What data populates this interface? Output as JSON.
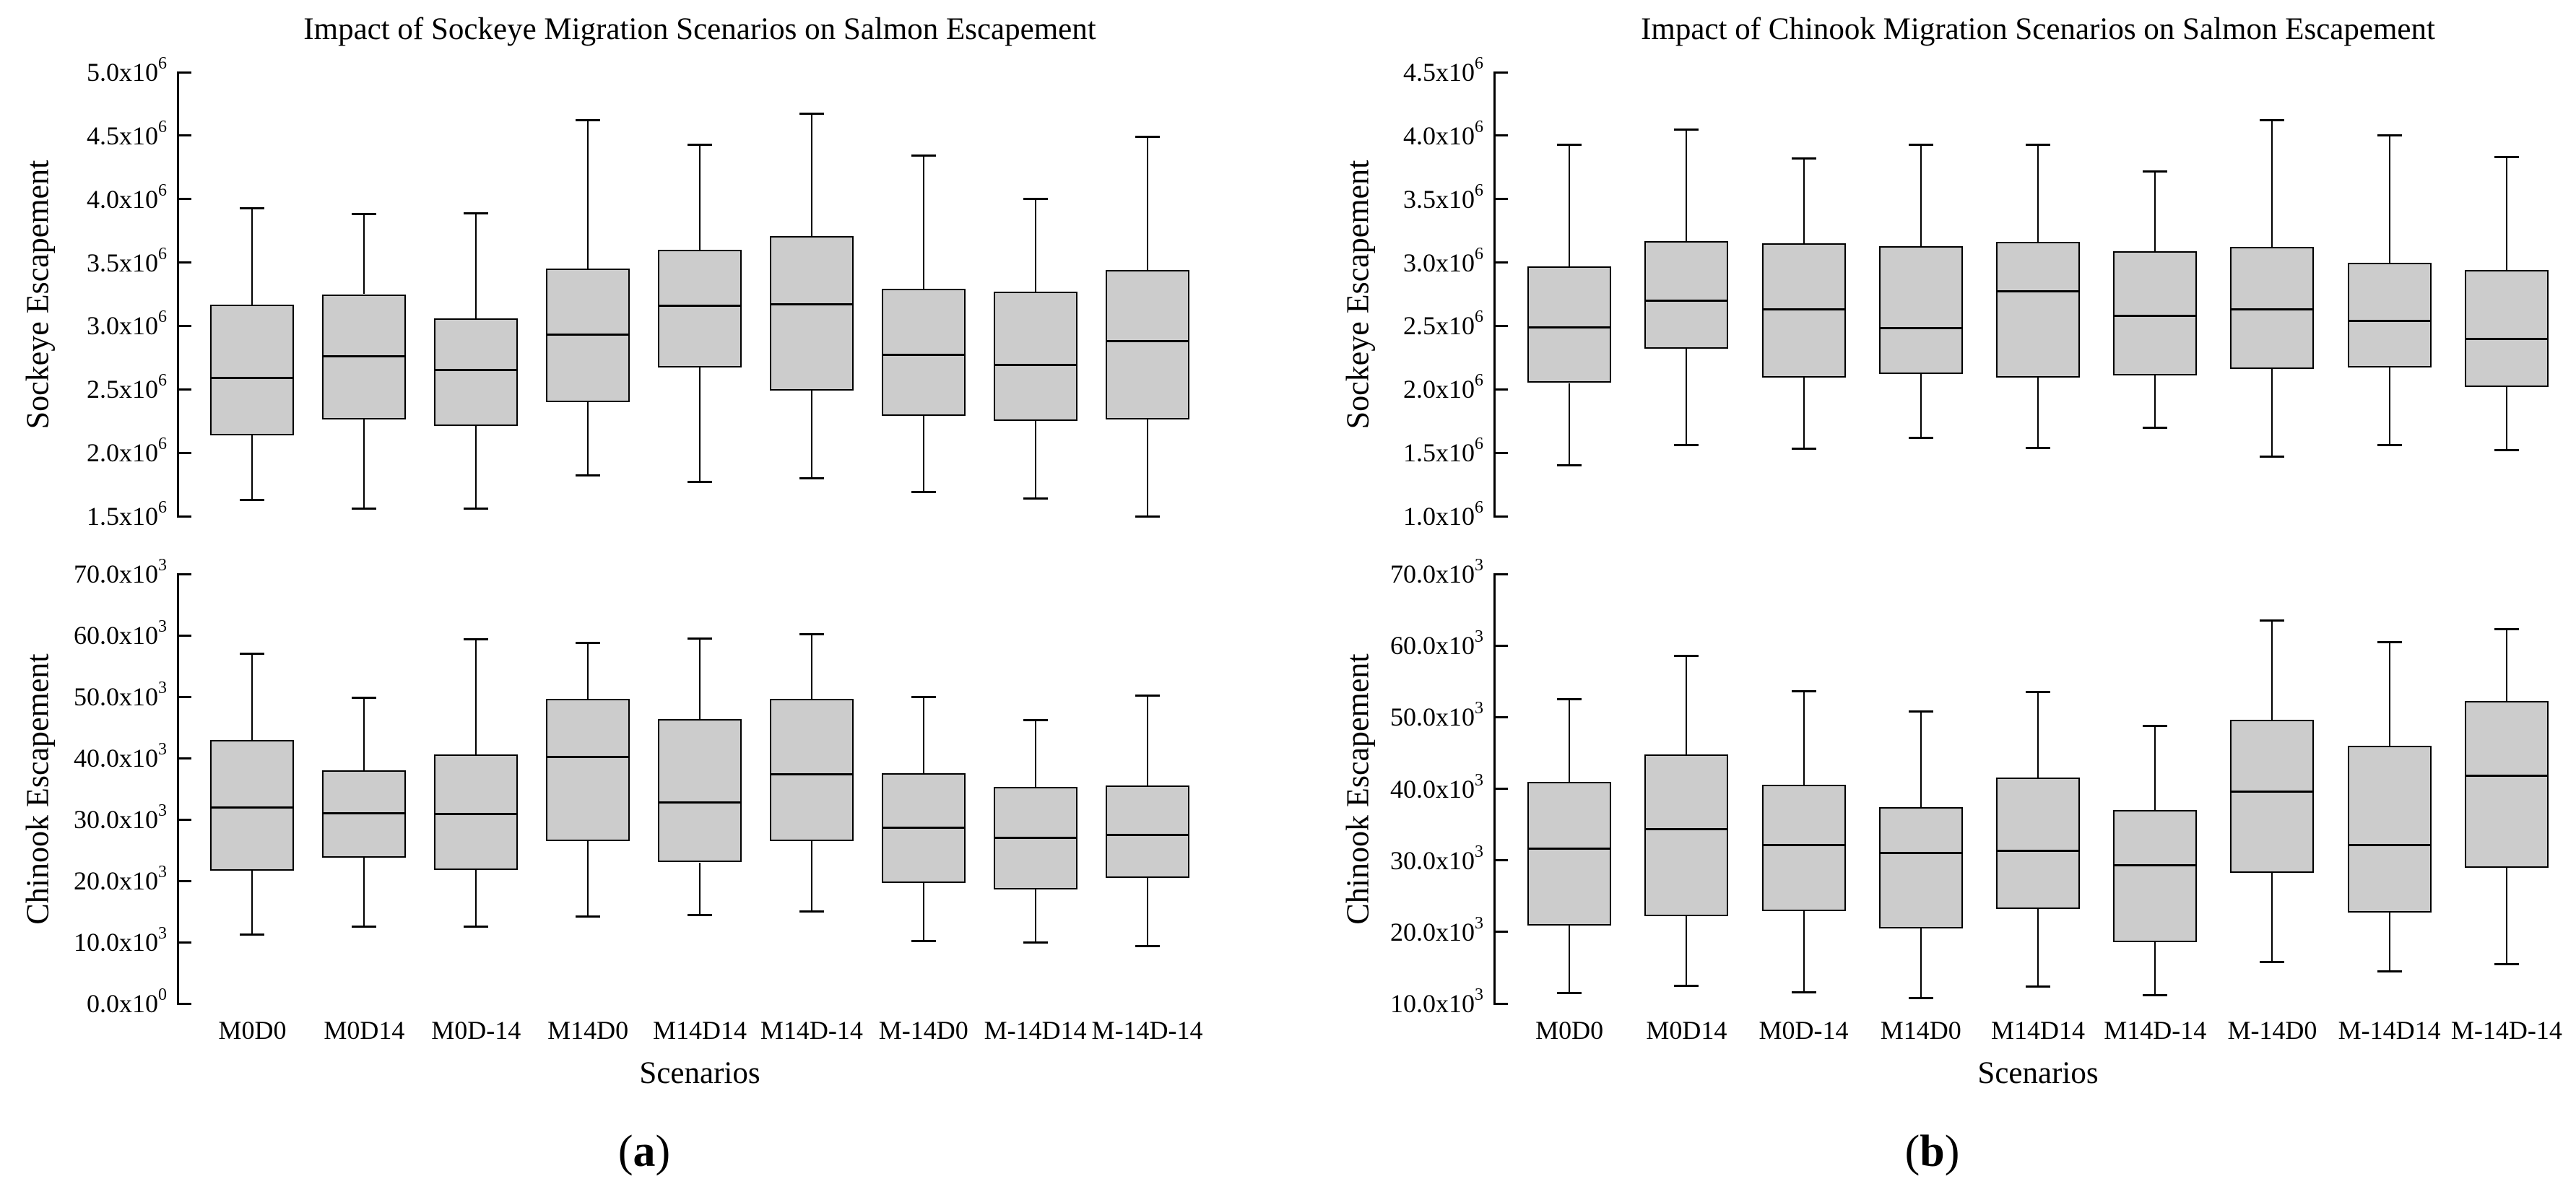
{
  "figure": {
    "background": "#ffffff",
    "box_fill_color": "#cccccc",
    "line_color": "#000000"
  },
  "chart_data": {
    "type": "box",
    "layout": "2 panels side-by-side, each with 2 stacked box-plot subplots, shared x categories",
    "categories": [
      "M0D0",
      "M0D14",
      "M0D-14",
      "M14D0",
      "M14D14",
      "M14D-14",
      "M-14D0",
      "M-14D14",
      "M-14D-14"
    ],
    "box_value_order": [
      "whisker_low",
      "q1",
      "median",
      "q3",
      "whisker_high"
    ],
    "panels": [
      {
        "title": "Impact of Sockeye Migration Scenarios on Salmon Escapement",
        "xlabel": "Scenarios",
        "caption": "(a)",
        "subplots": [
          {
            "ylabel": "Sockeye Escapement",
            "ymin": 1500000,
            "ymax": 5000000,
            "grid": false,
            "ticks": [
              {
                "v": 5000000,
                "m": "5.0",
                "e": "6"
              },
              {
                "v": 4500000,
                "m": "4.5",
                "e": "6"
              },
              {
                "v": 4000000,
                "m": "4.0",
                "e": "6"
              },
              {
                "v": 3500000,
                "m": "3.5",
                "e": "6"
              },
              {
                "v": 3000000,
                "m": "3.0",
                "e": "6"
              },
              {
                "v": 2500000,
                "m": "2.5",
                "e": "6"
              },
              {
                "v": 2000000,
                "m": "2.0",
                "e": "6"
              },
              {
                "v": 1500000,
                "m": "1.5",
                "e": "6"
              }
            ],
            "boxes": [
              [
                1630000,
                2140000,
                2590000,
                3170000,
                3930000
              ],
              [
                1560000,
                2260000,
                2760000,
                3250000,
                3880000
              ],
              [
                1560000,
                2210000,
                2650000,
                3060000,
                3890000
              ],
              [
                1820000,
                2400000,
                2930000,
                3450000,
                4620000
              ],
              [
                1770000,
                2670000,
                3160000,
                3600000,
                4430000
              ],
              [
                1800000,
                2490000,
                3170000,
                3710000,
                4670000
              ],
              [
                1690000,
                2290000,
                2770000,
                3290000,
                4340000
              ],
              [
                1640000,
                2250000,
                2690000,
                3270000,
                4000000
              ],
              [
                1500000,
                2260000,
                2880000,
                3440000,
                4490000
              ]
            ]
          },
          {
            "ylabel": "Chinook Escapement",
            "ymin": 0,
            "ymax": 70000,
            "grid": false,
            "ticks": [
              {
                "v": 70000,
                "m": "70.0",
                "e": "3"
              },
              {
                "v": 60000,
                "m": "60.0",
                "e": "3"
              },
              {
                "v": 50000,
                "m": "50.0",
                "e": "3"
              },
              {
                "v": 40000,
                "m": "40.0",
                "e": "3"
              },
              {
                "v": 30000,
                "m": "30.0",
                "e": "3"
              },
              {
                "v": 20000,
                "m": "20.0",
                "e": "3"
              },
              {
                "v": 10000,
                "m": "10.0",
                "e": "3"
              },
              {
                "v": 0,
                "m": "0.0",
                "e": "0"
              }
            ],
            "boxes": [
              [
                11200,
                21700,
                32000,
                43000,
                57000
              ],
              [
                12500,
                23800,
                31000,
                38000,
                49800
              ],
              [
                12500,
                21800,
                30900,
                40600,
                59400
              ],
              [
                14200,
                26500,
                40200,
                49600,
                58800
              ],
              [
                14400,
                23000,
                32800,
                46300,
                59500
              ],
              [
                15000,
                26500,
                37400,
                49600,
                60200
              ],
              [
                10200,
                19600,
                28700,
                37500,
                50000
              ],
              [
                10000,
                18600,
                27000,
                35300,
                46200
              ],
              [
                9300,
                20500,
                27500,
                35500,
                50200
              ]
            ]
          }
        ]
      },
      {
        "title": "Impact of Chinook Migration Scenarios on Salmon Escapement",
        "xlabel": "Scenarios",
        "caption": "(b)",
        "subplots": [
          {
            "ylabel": "Sockeye Escapement",
            "ymin": 1000000,
            "ymax": 4500000,
            "grid": false,
            "ticks": [
              {
                "v": 4500000,
                "m": "4.5",
                "e": "6"
              },
              {
                "v": 4000000,
                "m": "4.0",
                "e": "6"
              },
              {
                "v": 3500000,
                "m": "3.5",
                "e": "6"
              },
              {
                "v": 3000000,
                "m": "3.0",
                "e": "6"
              },
              {
                "v": 2500000,
                "m": "2.5",
                "e": "6"
              },
              {
                "v": 2000000,
                "m": "2.0",
                "e": "6"
              },
              {
                "v": 1500000,
                "m": "1.5",
                "e": "6"
              },
              {
                "v": 1000000,
                "m": "1.0",
                "e": "6"
              }
            ],
            "boxes": [
              [
                1400000,
                2050000,
                2490000,
                2970000,
                3930000
              ],
              [
                1560000,
                2320000,
                2700000,
                3170000,
                4050000
              ],
              [
                1530000,
                2090000,
                2630000,
                3150000,
                3820000
              ],
              [
                1620000,
                2120000,
                2480000,
                3130000,
                3930000
              ],
              [
                1540000,
                2090000,
                2770000,
                3160000,
                3930000
              ],
              [
                1700000,
                2110000,
                2580000,
                3090000,
                3720000
              ],
              [
                1470000,
                2160000,
                2630000,
                3120000,
                4120000
              ],
              [
                1560000,
                2170000,
                2540000,
                3000000,
                4000000
              ],
              [
                1520000,
                2020000,
                2400000,
                2940000,
                3830000
              ]
            ]
          },
          {
            "ylabel": "Chinook Escapement",
            "ymin": 10000,
            "ymax": 70000,
            "grid": false,
            "ticks": [
              {
                "v": 70000,
                "m": "70.0",
                "e": "3"
              },
              {
                "v": 60000,
                "m": "60.0",
                "e": "3"
              },
              {
                "v": 50000,
                "m": "50.0",
                "e": "3"
              },
              {
                "v": 40000,
                "m": "40.0",
                "e": "3"
              },
              {
                "v": 30000,
                "m": "30.0",
                "e": "3"
              },
              {
                "v": 20000,
                "m": "20.0",
                "e": "3"
              },
              {
                "v": 10000,
                "m": "10.0",
                "e": "3"
              }
            ],
            "boxes": [
              [
                11500,
                20900,
                31600,
                41000,
                52500
              ],
              [
                12500,
                22200,
                34400,
                44800,
                58600
              ],
              [
                11600,
                22900,
                32100,
                40600,
                53600
              ],
              [
                10800,
                20500,
                31000,
                37400,
                50800
              ],
              [
                12400,
                23200,
                31300,
                41600,
                53500
              ],
              [
                11200,
                18600,
                29300,
                37000,
                48800
              ],
              [
                15800,
                28300,
                39600,
                49600,
                63500
              ],
              [
                14500,
                22700,
                32100,
                46000,
                60500
              ],
              [
                15500,
                29000,
                41800,
                52300,
                62300
              ]
            ]
          }
        ]
      }
    ]
  }
}
